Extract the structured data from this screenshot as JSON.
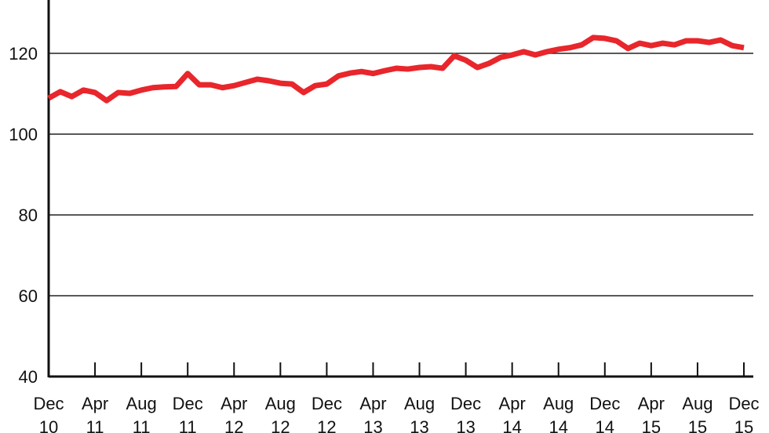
{
  "chart_data": {
    "type": "line",
    "categories": [
      "Dec 10",
      null,
      null,
      null,
      "Apr 11",
      null,
      null,
      null,
      "Aug 11",
      null,
      null,
      null,
      "Dec 11",
      null,
      null,
      null,
      "Apr 12",
      null,
      null,
      null,
      "Aug 12",
      null,
      null,
      null,
      "Dec 12",
      null,
      null,
      null,
      "Apr 13",
      null,
      null,
      null,
      "Aug 13",
      null,
      null,
      null,
      "Dec 13",
      null,
      null,
      null,
      "Apr 14",
      null,
      null,
      null,
      "Aug 14",
      null,
      null,
      null,
      "Dec 14",
      null,
      null,
      null,
      "Apr 15",
      null,
      null,
      null,
      "Aug 15",
      null,
      null,
      null,
      "Dec 15"
    ],
    "values": [
      108.9,
      110.5,
      109.3,
      110.9,
      110.3,
      108.3,
      110.3,
      110.1,
      110.9,
      111.5,
      111.7,
      111.8,
      115.0,
      112.2,
      112.2,
      111.5,
      112.0,
      112.8,
      113.6,
      113.2,
      112.6,
      112.4,
      110.3,
      112.0,
      112.4,
      114.4,
      115.1,
      115.5,
      115.0,
      115.7,
      116.3,
      116.1,
      116.5,
      116.7,
      116.3,
      119.4,
      118.3,
      116.5,
      117.5,
      119.0,
      119.6,
      120.4,
      119.6,
      120.4,
      121.0,
      121.4,
      122.1,
      123.9,
      123.7,
      123.1,
      121.2,
      122.5,
      121.9,
      122.5,
      122.1,
      123.1,
      123.1,
      122.7,
      123.3,
      121.9,
      121.4
    ],
    "color": "#e8262b",
    "ylim": [
      40,
      133.2
    ],
    "yticks": [
      40,
      60,
      80,
      100,
      120
    ],
    "grid": true
  }
}
